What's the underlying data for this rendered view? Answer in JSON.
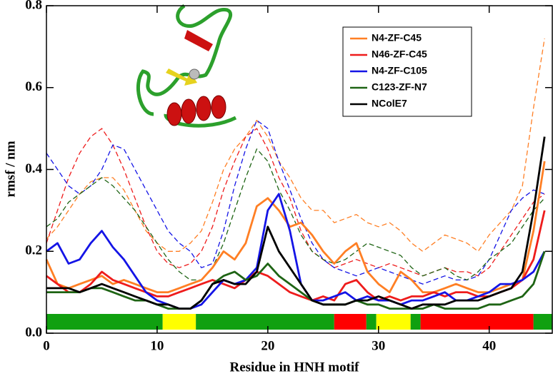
{
  "chart_data": {
    "type": "line",
    "xlabel": "Residue in HNH motif",
    "ylabel": "rmsf / nm",
    "x": [
      0,
      1,
      2,
      3,
      4,
      5,
      6,
      7,
      8,
      9,
      10,
      11,
      12,
      13,
      14,
      15,
      16,
      17,
      18,
      19,
      20,
      21,
      22,
      23,
      24,
      25,
      26,
      27,
      28,
      29,
      30,
      31,
      32,
      33,
      34,
      35,
      36,
      37,
      38,
      39,
      40,
      41,
      42,
      43,
      44,
      45
    ],
    "xlim": [
      0,
      45.7
    ],
    "ylim": [
      0,
      0.8
    ],
    "xticks": [
      0,
      10,
      20,
      30,
      40
    ],
    "yticks": [
      {
        "value": 0,
        "label": "0.0"
      },
      0.2,
      0.4,
      0.6,
      0.8
    ],
    "legend": "upper right",
    "series": [
      {
        "name": "N4-ZF-C45",
        "color": "#ff7f24",
        "values": [
          0.18,
          0.12,
          0.11,
          0.12,
          0.13,
          0.14,
          0.12,
          0.13,
          0.12,
          0.11,
          0.1,
          0.1,
          0.11,
          0.12,
          0.13,
          0.16,
          0.2,
          0.18,
          0.22,
          0.31,
          0.33,
          0.3,
          0.26,
          0.27,
          0.24,
          0.2,
          0.17,
          0.2,
          0.22,
          0.15,
          0.12,
          0.1,
          0.15,
          0.13,
          0.1,
          0.1,
          0.11,
          0.12,
          0.11,
          0.1,
          0.1,
          0.11,
          0.12,
          0.13,
          0.25,
          0.42
        ]
      },
      {
        "name": "N46-ZF-C45",
        "color": "#ee1c1c",
        "values": [
          0.14,
          0.12,
          0.1,
          0.1,
          0.12,
          0.15,
          0.13,
          0.12,
          0.11,
          0.1,
          0.09,
          0.09,
          0.1,
          0.11,
          0.12,
          0.13,
          0.12,
          0.11,
          0.13,
          0.15,
          0.14,
          0.12,
          0.1,
          0.09,
          0.08,
          0.09,
          0.08,
          0.12,
          0.13,
          0.1,
          0.08,
          0.09,
          0.08,
          0.09,
          0.09,
          0.1,
          0.09,
          0.1,
          0.1,
          0.09,
          0.09,
          0.1,
          0.11,
          0.13,
          0.18,
          0.3
        ]
      },
      {
        "name": "N4-ZF-C105",
        "color": "#1414e6",
        "values": [
          0.2,
          0.22,
          0.17,
          0.18,
          0.22,
          0.25,
          0.21,
          0.18,
          0.14,
          0.1,
          0.08,
          0.07,
          0.06,
          0.06,
          0.07,
          0.1,
          0.13,
          0.12,
          0.13,
          0.16,
          0.3,
          0.34,
          0.25,
          0.12,
          0.08,
          0.08,
          0.09,
          0.1,
          0.08,
          0.09,
          0.08,
          0.08,
          0.07,
          0.08,
          0.08,
          0.09,
          0.1,
          0.08,
          0.08,
          0.09,
          0.1,
          0.12,
          0.12,
          0.13,
          0.15,
          0.2
        ]
      },
      {
        "name": "C123-ZF-N7",
        "color": "#1e6414",
        "values": [
          0.1,
          0.1,
          0.1,
          0.1,
          0.11,
          0.11,
          0.1,
          0.09,
          0.08,
          0.08,
          0.07,
          0.06,
          0.06,
          0.06,
          0.08,
          0.12,
          0.14,
          0.15,
          0.13,
          0.14,
          0.17,
          0.14,
          0.12,
          0.1,
          0.08,
          0.07,
          0.07,
          0.07,
          0.08,
          0.07,
          0.07,
          0.06,
          0.06,
          0.06,
          0.06,
          0.07,
          0.06,
          0.06,
          0.06,
          0.06,
          0.07,
          0.07,
          0.08,
          0.09,
          0.12,
          0.2
        ]
      },
      {
        "name": "NColE7",
        "color": "#000000",
        "values": [
          0.11,
          0.11,
          0.11,
          0.1,
          0.11,
          0.12,
          0.11,
          0.1,
          0.09,
          0.08,
          0.07,
          0.07,
          0.06,
          0.06,
          0.08,
          0.12,
          0.13,
          0.12,
          0.12,
          0.15,
          0.26,
          0.2,
          0.16,
          0.12,
          0.08,
          0.07,
          0.07,
          0.07,
          0.08,
          0.08,
          0.09,
          0.08,
          0.07,
          0.06,
          0.07,
          0.07,
          0.07,
          0.08,
          0.08,
          0.08,
          0.09,
          0.1,
          0.11,
          0.15,
          0.3,
          0.48
        ]
      }
    ],
    "dashed_series": [
      {
        "color": "#ff7f24",
        "values": [
          0.23,
          0.26,
          0.3,
          0.34,
          0.37,
          0.38,
          0.38,
          0.35,
          0.3,
          0.25,
          0.22,
          0.2,
          0.2,
          0.22,
          0.25,
          0.32,
          0.4,
          0.45,
          0.48,
          0.52,
          0.48,
          0.42,
          0.38,
          0.33,
          0.3,
          0.3,
          0.27,
          0.28,
          0.29,
          0.27,
          0.26,
          0.27,
          0.25,
          0.22,
          0.2,
          0.22,
          0.24,
          0.23,
          0.22,
          0.2,
          0.24,
          0.27,
          0.3,
          0.36,
          0.55,
          0.72
        ]
      },
      {
        "color": "#ee1c1c",
        "values": [
          0.22,
          0.3,
          0.38,
          0.44,
          0.48,
          0.5,
          0.46,
          0.4,
          0.33,
          0.26,
          0.2,
          0.17,
          0.16,
          0.17,
          0.2,
          0.26,
          0.35,
          0.42,
          0.48,
          0.5,
          0.45,
          0.38,
          0.33,
          0.25,
          0.2,
          0.18,
          0.16,
          0.17,
          0.18,
          0.17,
          0.16,
          0.17,
          0.16,
          0.15,
          0.14,
          0.15,
          0.16,
          0.15,
          0.15,
          0.14,
          0.16,
          0.2,
          0.24,
          0.28,
          0.32,
          0.34
        ]
      },
      {
        "color": "#1414e6",
        "values": [
          0.44,
          0.4,
          0.36,
          0.34,
          0.36,
          0.4,
          0.46,
          0.45,
          0.4,
          0.35,
          0.3,
          0.25,
          0.22,
          0.2,
          0.16,
          0.17,
          0.25,
          0.36,
          0.45,
          0.52,
          0.5,
          0.42,
          0.35,
          0.28,
          0.22,
          0.18,
          0.16,
          0.15,
          0.14,
          0.15,
          0.16,
          0.15,
          0.14,
          0.13,
          0.12,
          0.13,
          0.14,
          0.13,
          0.13,
          0.14,
          0.18,
          0.24,
          0.3,
          0.33,
          0.35,
          0.34
        ]
      },
      {
        "color": "#1e6414",
        "values": [
          0.26,
          0.28,
          0.32,
          0.34,
          0.36,
          0.38,
          0.36,
          0.33,
          0.3,
          0.26,
          0.22,
          0.18,
          0.15,
          0.13,
          0.13,
          0.16,
          0.22,
          0.3,
          0.38,
          0.45,
          0.42,
          0.35,
          0.3,
          0.24,
          0.2,
          0.18,
          0.17,
          0.18,
          0.2,
          0.22,
          0.21,
          0.2,
          0.19,
          0.16,
          0.14,
          0.15,
          0.16,
          0.14,
          0.13,
          0.15,
          0.18,
          0.2,
          0.22,
          0.26,
          0.3,
          0.33
        ]
      }
    ],
    "segments": [
      {
        "start": 0,
        "end": 10.5,
        "color": "#10a010"
      },
      {
        "start": 10.5,
        "end": 13.5,
        "color": "#ffff00"
      },
      {
        "start": 13.5,
        "end": 26,
        "color": "#10a010"
      },
      {
        "start": 26,
        "end": 28.9,
        "color": "#ff0000"
      },
      {
        "start": 28.9,
        "end": 29.8,
        "color": "#10a010"
      },
      {
        "start": 29.8,
        "end": 32.9,
        "color": "#ffff00"
      },
      {
        "start": 32.9,
        "end": 33.8,
        "color": "#10a010"
      },
      {
        "start": 33.8,
        "end": 44,
        "color": "#ff0000"
      },
      {
        "start": 44,
        "end": 45.7,
        "color": "#10a010"
      }
    ]
  }
}
